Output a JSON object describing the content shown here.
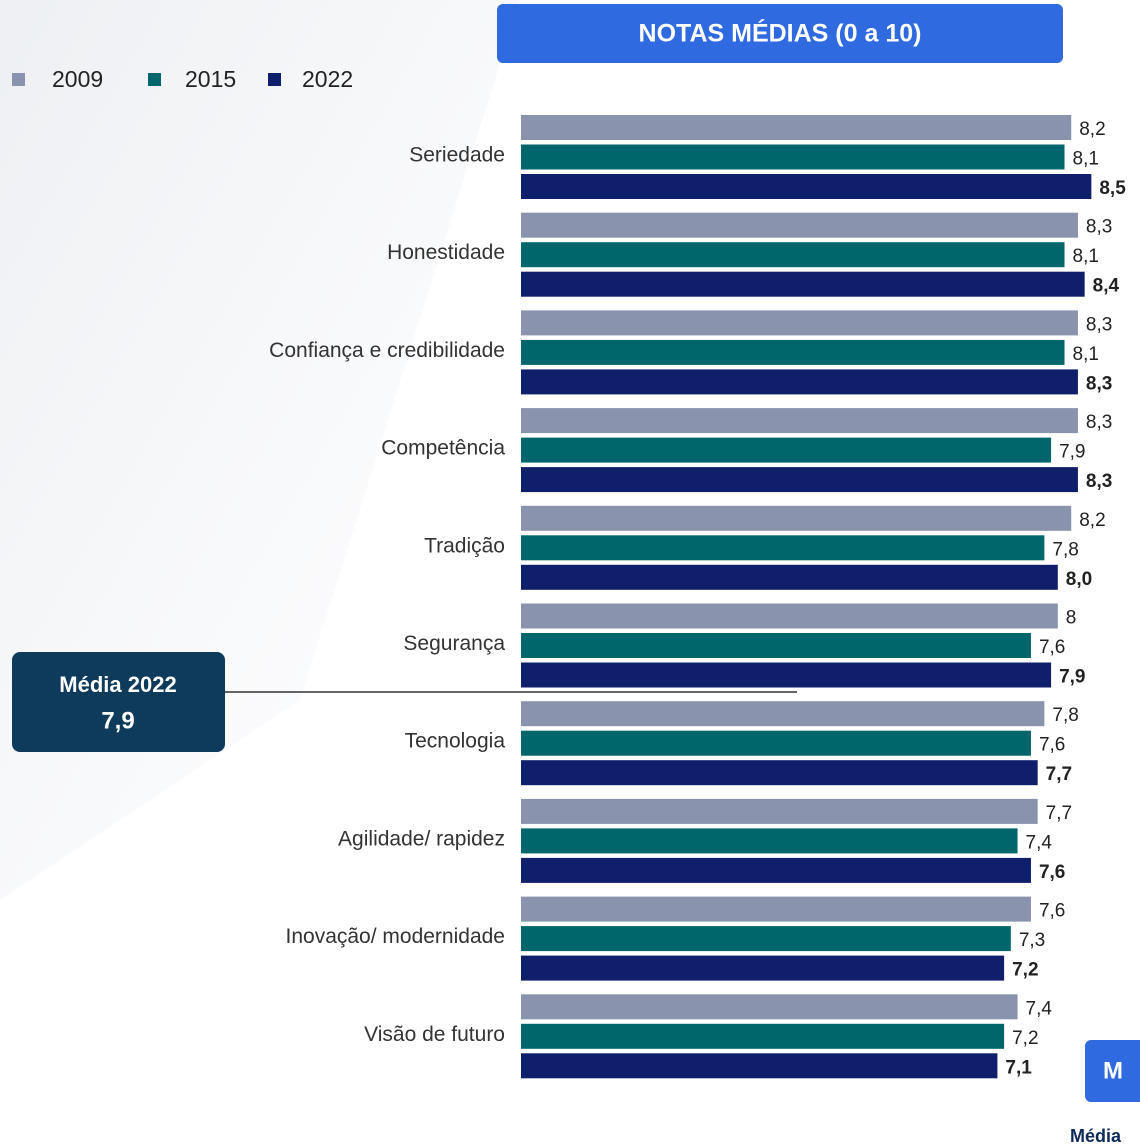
{
  "chart_data": {
    "type": "barh",
    "title": "NOTAS MÉDIAS (0 a 10)",
    "categories": [
      "Seriedade",
      "Honestidade",
      "Confiança e credibilidade",
      "Competência",
      "Tradição",
      "Segurança",
      "Tecnologia",
      "Agilidade/ rapidez",
      "Inovação/ modernidade",
      "Visão de futuro"
    ],
    "series": [
      {
        "name": "2009",
        "color": "#8a93ad",
        "values": [
          8.2,
          8.3,
          8.3,
          8.3,
          8.2,
          8,
          7.8,
          7.7,
          7.6,
          7.4
        ],
        "value_labels": [
          "8,2",
          "8,3",
          "8,3",
          "8,3",
          "8,2",
          "8",
          "7,8",
          "7,7",
          "7,6",
          "7,4"
        ]
      },
      {
        "name": "2015",
        "color": "#00666b",
        "values": [
          8.1,
          8.1,
          8.1,
          7.9,
          7.8,
          7.6,
          7.6,
          7.4,
          7.3,
          7.2
        ],
        "value_labels": [
          "8,1",
          "8,1",
          "8,1",
          "7,9",
          "7,8",
          "7,6",
          "7,6",
          "7,4",
          "7,3",
          "7,2"
        ]
      },
      {
        "name": "2022",
        "color": "#0f1f6b",
        "values": [
          8.5,
          8.4,
          8.3,
          8.3,
          8.0,
          7.9,
          7.7,
          7.6,
          7.2,
          7.1
        ],
        "value_labels": [
          "8,5",
          "8,4",
          "8,3",
          "8,3",
          "8,0",
          "7,9",
          "7,7",
          "7,6",
          "7,2",
          "7,1"
        ]
      }
    ],
    "xlim": [
      0,
      10
    ],
    "legend": "top-left",
    "annotations": {
      "mean_title": "Média 2022",
      "mean_value": "7,9",
      "corner_box": "M",
      "corner_text": "Média"
    }
  }
}
